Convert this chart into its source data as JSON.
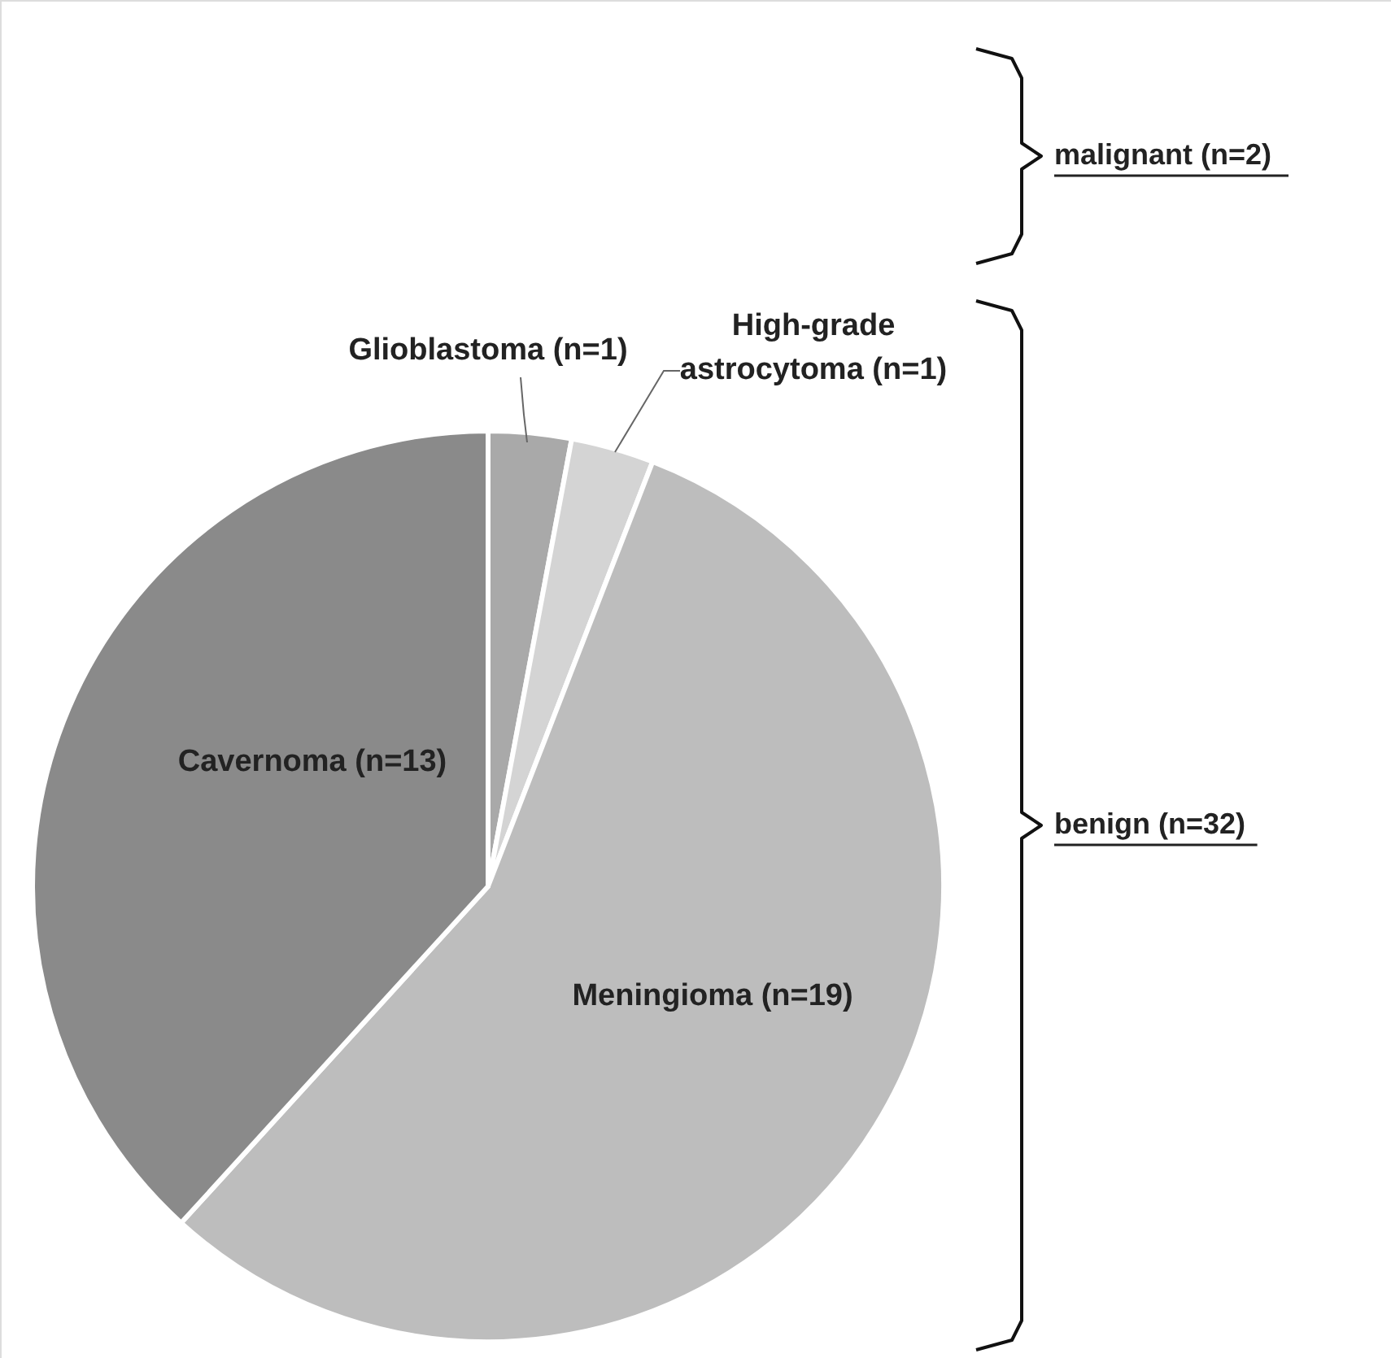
{
  "chart_data": {
    "type": "pie",
    "categories": [
      "Glioblastoma (n=1)",
      "High-grade astrocytoma (n=1)",
      "Meningioma (n=19)",
      "Cavernoma (n=13)"
    ],
    "values": [
      1,
      1,
      19,
      13
    ],
    "colors": [
      "#a9a9a9",
      "#d4d4d4",
      "#bdbdbd",
      "#8a8a8a"
    ],
    "annotations": [
      "malignant (n=2)",
      "benign (n=32)"
    ]
  }
}
